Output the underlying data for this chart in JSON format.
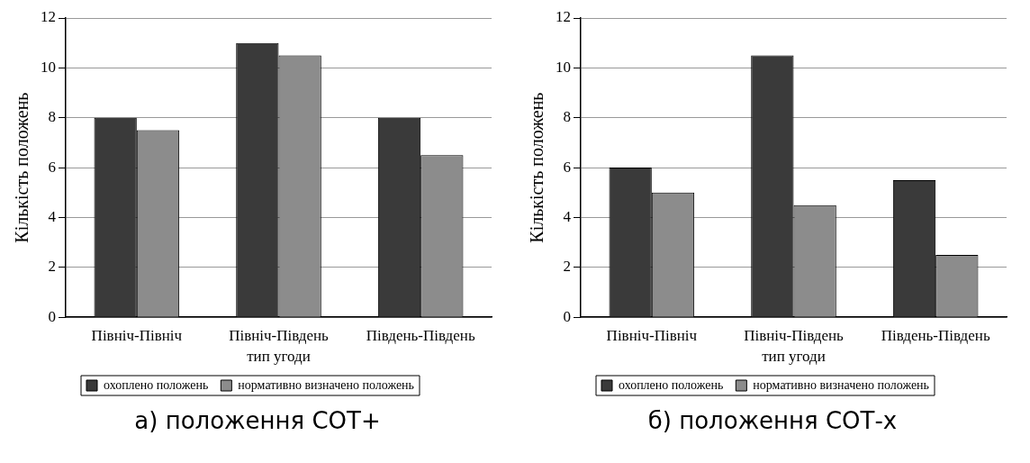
{
  "chart_data": [
    {
      "type": "bar",
      "title": "а) положення СОТ+",
      "xlabel": "тип угоди",
      "ylabel": "Кількість положень",
      "categories": [
        "Північ-Північ",
        "Північ-Південь",
        "Південь-Південь"
      ],
      "series": [
        {
          "name": "охоплено положень",
          "color": "#3a3a3a",
          "values": [
            8,
            11,
            8
          ]
        },
        {
          "name": "нормативно визначено положень",
          "color": "#8c8c8c",
          "values": [
            7.5,
            10.5,
            6.5
          ]
        }
      ],
      "ylim": [
        0,
        12
      ],
      "yticks": [
        0,
        2,
        4,
        6,
        8,
        10,
        12
      ],
      "grid": "y",
      "legend": "bottom"
    },
    {
      "type": "bar",
      "title": "б) положення СОТ-х",
      "xlabel": "тип угоди",
      "ylabel": "Кількість положень",
      "categories": [
        "Північ-Північ",
        "Північ-Південь",
        "Південь-Південь"
      ],
      "series": [
        {
          "name": "охоплено положень",
          "color": "#3a3a3a",
          "values": [
            6,
            10.5,
            5.5
          ]
        },
        {
          "name": "нормативно визначено положень",
          "color": "#8c8c8c",
          "values": [
            5,
            4.5,
            2.5
          ]
        }
      ],
      "ylim": [
        0,
        12
      ],
      "yticks": [
        0,
        2,
        4,
        6,
        8,
        10,
        12
      ],
      "grid": "y",
      "legend": "bottom"
    }
  ]
}
